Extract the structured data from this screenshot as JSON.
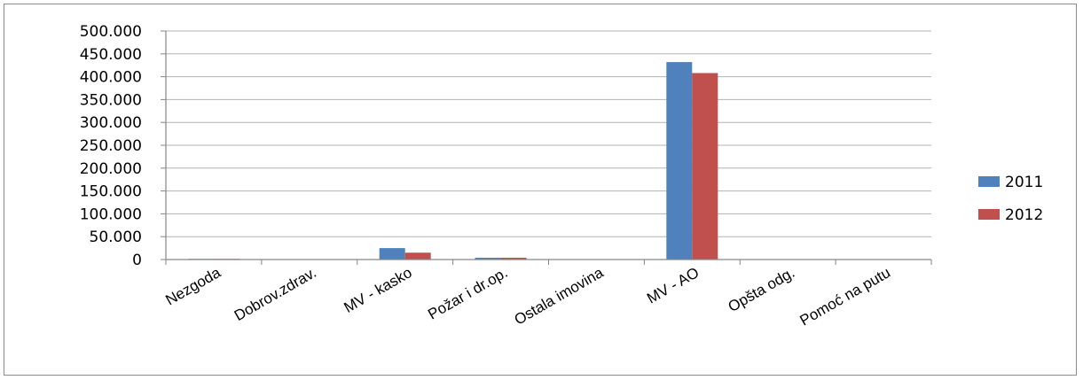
{
  "chart_data": {
    "type": "bar",
    "categories": [
      "Nezgoda",
      "Dobrov.zdrav.",
      "MV - kasko",
      "Požar i dr.op.",
      "Ostala imovina",
      "MV - AO",
      "Opšta odg.",
      "Pomoć na putu"
    ],
    "series": [
      {
        "name": "2011",
        "color": "#4f81bd",
        "values": [
          1500,
          0,
          25000,
          4000,
          0,
          432000,
          0,
          0
        ]
      },
      {
        "name": "2012",
        "color": "#c0504d",
        "values": [
          1500,
          0,
          15000,
          4000,
          0,
          408000,
          0,
          0
        ]
      }
    ],
    "ylim": [
      0,
      500000
    ],
    "yticks": [
      0,
      50000,
      100000,
      150000,
      200000,
      250000,
      300000,
      350000,
      400000,
      450000,
      500000
    ],
    "ytick_labels": [
      "0",
      "50.000",
      "100.000",
      "150.000",
      "200.000",
      "250.000",
      "300.000",
      "350.000",
      "400.000",
      "450.000",
      "500.000"
    ],
    "grid": true,
    "legend_position": "right",
    "gridline_color": "#b3b3b3",
    "axis_color": "#868686"
  }
}
